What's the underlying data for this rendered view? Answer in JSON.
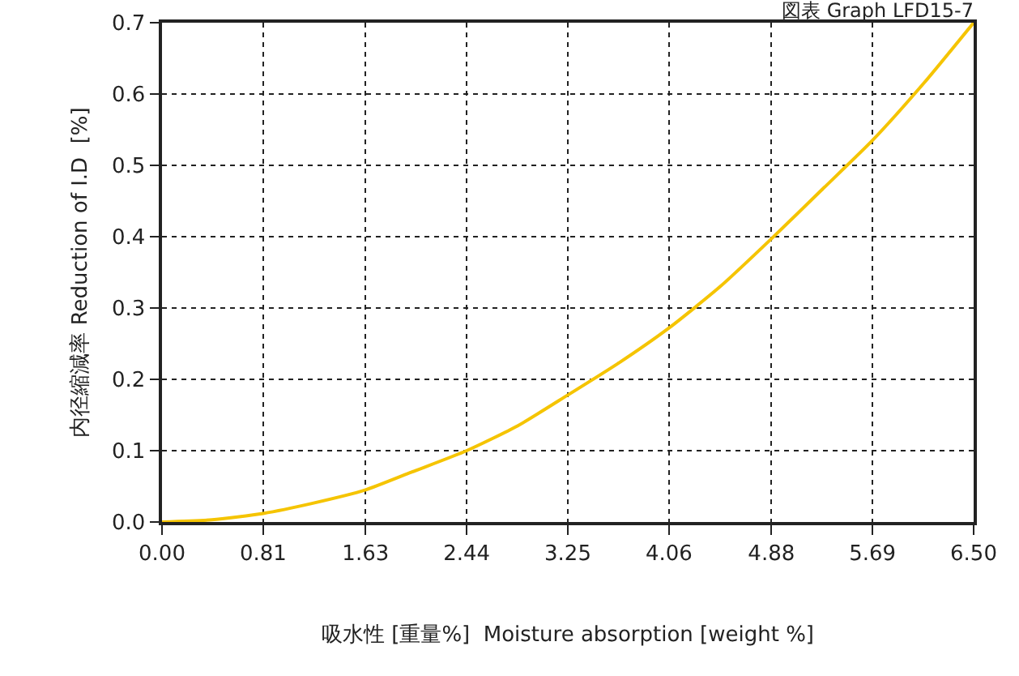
{
  "chart_data": {
    "type": "line",
    "title": "図表 Graph LFD15-7",
    "xlabel": "吸水性 [重量%]  Moisture absorption [weight %]",
    "ylabel": "内径縮減率 Reduction of I.D  [%]",
    "x": [
      0,
      0.4,
      0.81,
      1.2,
      1.63,
      2.0,
      2.44,
      2.85,
      3.25,
      3.65,
      4.06,
      4.47,
      4.88,
      5.28,
      5.69,
      6.1,
      6.5
    ],
    "series": [
      {
        "color": "#f5c400",
        "values": [
          0,
          0.003,
          0.012,
          0.026,
          0.045,
          0.07,
          0.1,
          0.135,
          0.178,
          0.222,
          0.272,
          0.33,
          0.397,
          0.465,
          0.535,
          0.615,
          0.7
        ]
      }
    ],
    "xlim": [
      0,
      6.5
    ],
    "ylim": [
      0,
      0.7
    ],
    "xticks": [
      {
        "value": 0,
        "label": "0.00"
      },
      0.81,
      1.63,
      2.44,
      3.25,
      4.06,
      4.88,
      5.69,
      {
        "value": 6.5,
        "label": "6.50"
      }
    ],
    "yticks": [
      {
        "value": 0,
        "label": "0.0"
      },
      0.1,
      0.2,
      0.3,
      0.4,
      0.5,
      0.6,
      0.7
    ],
    "grid": true,
    "marker": "none",
    "line_style": "solid"
  }
}
